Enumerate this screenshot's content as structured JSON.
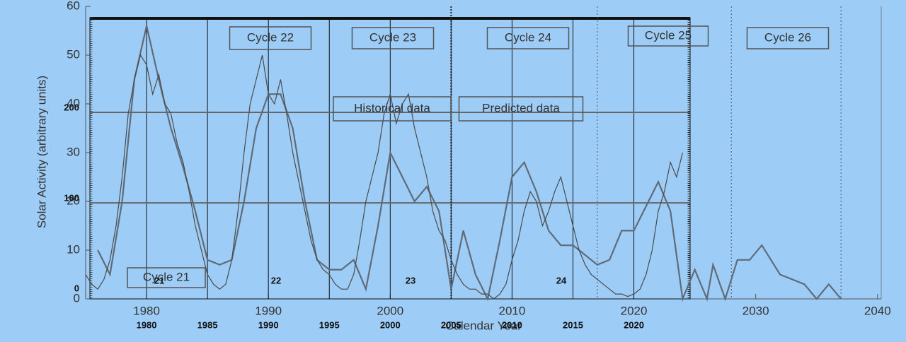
{
  "chart_data": {
    "type": "line",
    "x_label": "Calendar Year",
    "y_label": "Solar Activity (arbitrary units)",
    "xlim": [
      1975,
      2041
    ],
    "xticks": [
      1980,
      1990,
      2000,
      2010,
      2020,
      2030,
      2040
    ],
    "ylim": [
      0,
      60
    ],
    "yticks": [
      0,
      10,
      20,
      30,
      40,
      50,
      60
    ],
    "x2ticks": [
      1980,
      1985,
      1990,
      1995,
      2000,
      2005,
      2010,
      2015,
      2020
    ],
    "y2lim": [
      -6,
      317
    ],
    "y2ticks": [
      0,
      100,
      200
    ],
    "boundaries": [
      2017,
      2028,
      2037
    ],
    "annotations": [
      "Cycle 21",
      "Cycle 22",
      "Cycle 23",
      "Cycle 24",
      "Cycle 25",
      "Cycle 26",
      "Historical data",
      "Predicted data",
      "21",
      "22",
      "23",
      "24"
    ],
    "series": [
      {
        "name": "prediction",
        "color": "#5f6b78",
        "x": [
          1976,
          1977,
          1978,
          1979,
          1980,
          1981,
          1982,
          1983,
          1984,
          1985,
          1986,
          1987,
          1988,
          1989,
          1990,
          1991,
          1992,
          1993,
          1994,
          1995,
          1996,
          1997,
          1998,
          1999,
          2000,
          2001,
          2002,
          2003,
          2004,
          2005,
          2006,
          2007,
          2008,
          2009,
          2010,
          2011,
          2012,
          2013,
          2014,
          2015,
          2016,
          2017,
          2018,
          2019,
          2020,
          2021,
          2022,
          2023,
          2024,
          2025,
          2026,
          2026.5,
          2027.5,
          2028.5,
          2029.5,
          2030.5,
          2032,
          2034,
          2035,
          2036,
          2037
        ],
        "values": [
          10,
          5,
          20,
          45,
          56,
          45,
          35,
          27,
          18,
          8,
          7,
          8,
          20,
          35,
          42,
          42,
          35,
          20,
          8,
          6,
          6,
          8,
          2,
          15,
          30,
          25,
          20,
          23,
          18,
          2,
          14,
          5,
          0,
          12,
          25,
          28,
          22,
          14,
          11,
          11,
          9,
          7,
          8,
          14,
          14,
          19,
          24,
          18,
          0,
          6,
          0,
          7,
          0,
          8,
          8,
          11,
          5,
          3,
          0,
          3,
          0
        ]
      },
      {
        "name": "observed",
        "color": "#4a4a4a",
        "x": [
          1975,
          1975.5,
          1976,
          1976.5,
          1977,
          1977.5,
          1978,
          1978.5,
          1979,
          1979.5,
          1980,
          1980.5,
          1981,
          1981.5,
          1982,
          1982.5,
          1983,
          1983.5,
          1984,
          1984.5,
          1985,
          1985.5,
          1986,
          1986.5,
          1987,
          1987.5,
          1988,
          1988.5,
          1989,
          1989.5,
          1990,
          1990.5,
          1991,
          1991.5,
          1992,
          1992.5,
          1993,
          1993.5,
          1994,
          1994.5,
          1995,
          1995.5,
          1996,
          1996.5,
          1997,
          1997.5,
          1998,
          1998.5,
          1999,
          1999.5,
          2000,
          2000.5,
          2001,
          2001.5,
          2002,
          2002.5,
          2003,
          2003.5,
          2004,
          2004.5,
          2005,
          2005.5,
          2006,
          2006.5,
          2007,
          2007.5,
          2008,
          2008.5,
          2009,
          2009.5,
          2010,
          2010.5,
          2011,
          2011.5,
          2012,
          2012.5,
          2013,
          2013.5,
          2014,
          2014.5,
          2015,
          2015.5,
          2016,
          2016.5,
          2017,
          2017.5,
          2018,
          2018.5,
          2019,
          2019.5,
          2020,
          2020.5,
          2021,
          2021.5,
          2022,
          2022.5,
          2023,
          2023.5,
          2024
        ],
        "values": [
          5,
          3,
          2,
          4,
          8,
          15,
          25,
          38,
          45,
          50,
          48,
          42,
          46,
          40,
          38,
          32,
          28,
          22,
          15,
          10,
          5,
          3,
          2,
          3,
          8,
          18,
          30,
          40,
          45,
          50,
          42,
          40,
          45,
          38,
          30,
          24,
          18,
          12,
          8,
          6,
          5,
          3,
          2,
          2,
          5,
          12,
          20,
          25,
          30,
          38,
          42,
          36,
          40,
          42,
          35,
          30,
          25,
          18,
          14,
          12,
          8,
          5,
          3,
          2,
          2,
          1,
          1,
          0,
          1,
          3,
          8,
          12,
          18,
          22,
          20,
          15,
          18,
          22,
          25,
          20,
          15,
          10,
          7,
          5,
          4,
          3,
          2,
          1,
          1,
          0.5,
          1,
          2,
          5,
          10,
          18,
          22,
          28,
          25,
          30
        ]
      }
    ]
  }
}
